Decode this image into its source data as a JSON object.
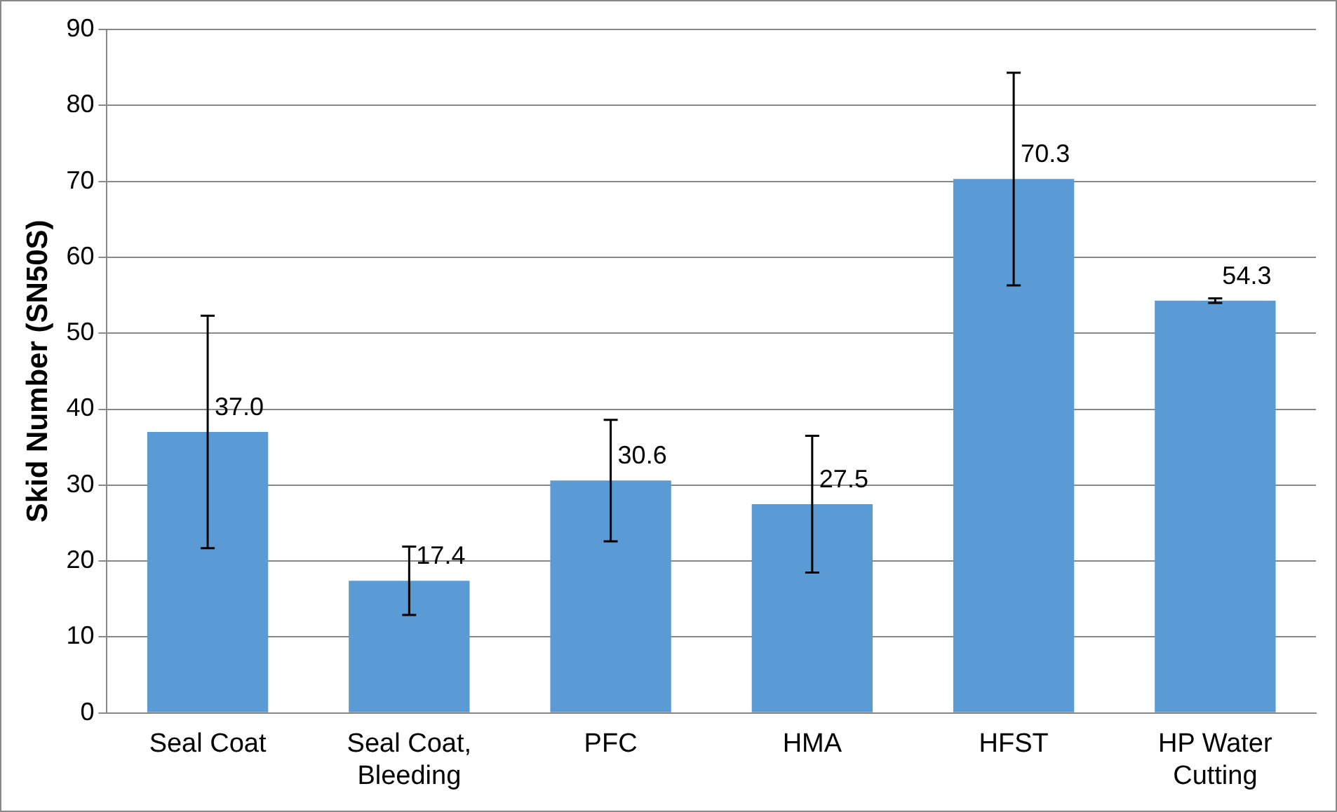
{
  "chart_data": {
    "type": "bar",
    "ylabel": "Skid Number (SN50S)",
    "categories": [
      "Seal Coat",
      "Seal Coat, Bleeding",
      "PFC",
      "HMA",
      "HFST",
      "HP Water Cutting"
    ],
    "values": [
      37.0,
      17.4,
      30.6,
      27.5,
      70.3,
      54.3
    ],
    "errors": [
      15.3,
      4.5,
      8,
      9,
      14,
      0.3
    ],
    "color": "#5b9bd5",
    "ylim": [
      0,
      90
    ],
    "yticks": [
      0,
      10,
      20,
      30,
      40,
      50,
      60,
      70,
      80,
      90
    ],
    "value_labels": [
      "37.0",
      "17.4",
      "30.6",
      "27.5",
      "70.3",
      "54.3"
    ],
    "grid": "y",
    "legend": false
  }
}
